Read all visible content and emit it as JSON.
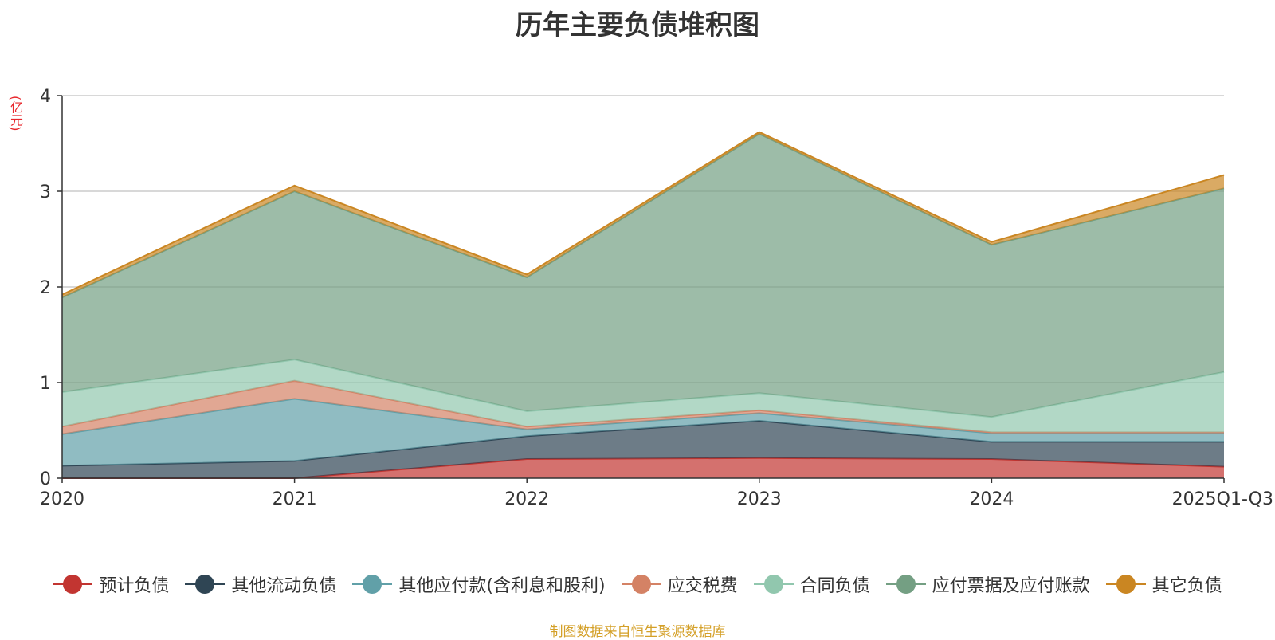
{
  "chart_data": {
    "type": "area",
    "stacked": true,
    "title": "历年主要负债堆积图",
    "unit_label": "(亿元)",
    "categories": [
      "2020",
      "2021",
      "2022",
      "2023",
      "2024",
      "2025Q1-Q3"
    ],
    "ylim": [
      0,
      4
    ],
    "yticks": [
      0,
      1,
      2,
      3,
      4
    ],
    "grid": true,
    "legend_position": "bottom",
    "series": [
      {
        "name": "预计负债",
        "color": "#c23531",
        "values": [
          0,
          0,
          0.2,
          0.21,
          0.2,
          0.12
        ]
      },
      {
        "name": "其他流动负债",
        "color": "#2f4554",
        "values": [
          0.13,
          0.18,
          0.24,
          0.39,
          0.18,
          0.26
        ]
      },
      {
        "name": "其他应付款(含利息和股利)",
        "color": "#61a0a8",
        "values": [
          0.33,
          0.65,
          0.07,
          0.08,
          0.09,
          0.09
        ]
      },
      {
        "name": "应交税费",
        "color": "#d48265",
        "values": [
          0.08,
          0.19,
          0.03,
          0.03,
          0.01,
          0.01
        ]
      },
      {
        "name": "合同负债",
        "color": "#91c7ae",
        "values": [
          0.36,
          0.22,
          0.16,
          0.18,
          0.16,
          0.63
        ]
      },
      {
        "name": "应付票据及应付账款",
        "color": "#749f83",
        "values": [
          0.99,
          1.76,
          1.4,
          2.71,
          1.8,
          1.92
        ]
      },
      {
        "name": "其它负债",
        "color": "#ca8622",
        "values": [
          0.03,
          0.06,
          0.03,
          0.02,
          0.03,
          0.14
        ]
      }
    ]
  },
  "source_note": "制图数据来自恒生聚源数据库"
}
